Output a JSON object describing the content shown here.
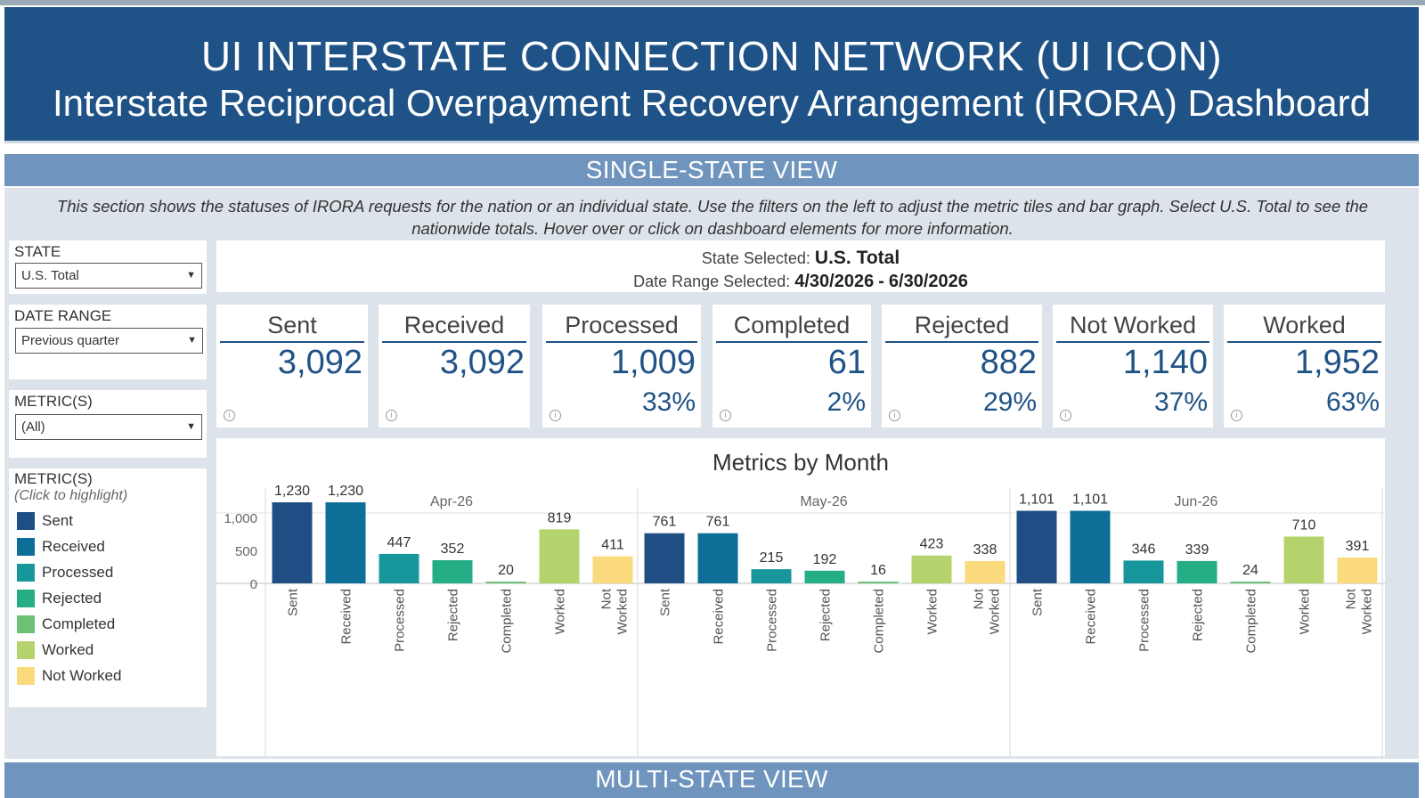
{
  "header": {
    "title": "UI INTERSTATE CONNECTION NETWORK (UI ICON)",
    "subtitle": "Interstate Reciprocal Overpayment Recovery Arrangement (IRORA) Dashboard"
  },
  "single_state_band": "SINGLE-STATE VIEW",
  "multi_state_band": "MULTI-STATE VIEW",
  "description": "This section shows the statuses of IRORA requests for the nation or an individual state. Use the filters on the left to adjust the metric tiles and bar graph. Select U.S. Total to see the nationwide totals. Hover over or click on dashboard elements for more information.",
  "filters": {
    "state_label": "STATE",
    "state_value": "U.S. Total",
    "date_label": "DATE RANGE",
    "date_value": "Previous quarter",
    "metric_label": "METRIC(S)",
    "metric_value": "(All)"
  },
  "legend": {
    "title": "METRIC(S)",
    "subtitle": "(Click to highlight)",
    "items": [
      {
        "label": "Sent",
        "color": "#1f4e85"
      },
      {
        "label": "Received",
        "color": "#0d6f98"
      },
      {
        "label": "Processed",
        "color": "#17979b"
      },
      {
        "label": "Rejected",
        "color": "#25ad86"
      },
      {
        "label": "Completed",
        "color": "#6bc275"
      },
      {
        "label": "Worked",
        "color": "#b5d36c"
      },
      {
        "label": "Not Worked",
        "color": "#fbd97d"
      }
    ]
  },
  "selection": {
    "state_prefix": "State Selected:",
    "state": "U.S. Total",
    "date_prefix": "Date Range Selected:",
    "date_start": "4/30/2026",
    "date_sep": "-",
    "date_end": "6/30/2026"
  },
  "tiles": [
    {
      "name": "Sent",
      "value": "3,092",
      "pct": ""
    },
    {
      "name": "Received",
      "value": "3,092",
      "pct": ""
    },
    {
      "name": "Processed",
      "value": "1,009",
      "pct": "33%"
    },
    {
      "name": "Completed",
      "value": "61",
      "pct": "2%"
    },
    {
      "name": "Rejected",
      "value": "882",
      "pct": "29%"
    },
    {
      "name": "Not Worked",
      "value": "1,140",
      "pct": "37%"
    },
    {
      "name": "Worked",
      "value": "1,952",
      "pct": "63%"
    }
  ],
  "chart_data": {
    "type": "bar",
    "title": "Metrics by Month",
    "ylim": [
      0,
      1300
    ],
    "yticks": [
      0,
      500,
      1000
    ],
    "ytick_labels": [
      "0",
      "500",
      "1,000"
    ],
    "categories": [
      "Sent",
      "Received",
      "Processed",
      "Rejected",
      "Completed",
      "Worked",
      "Not Worked"
    ],
    "colors": [
      "#1f4e85",
      "#0d6f98",
      "#17979b",
      "#25ad86",
      "#6bc275",
      "#b5d36c",
      "#fbd97d"
    ],
    "panels": [
      {
        "month": "Apr-26",
        "values": [
          1230,
          1230,
          447,
          352,
          20,
          819,
          411
        ],
        "labels": [
          "1,230",
          "1,230",
          "447",
          "352",
          "20",
          "819",
          "411"
        ]
      },
      {
        "month": "May-26",
        "values": [
          761,
          761,
          215,
          192,
          16,
          423,
          338
        ],
        "labels": [
          "761",
          "761",
          "215",
          "192",
          "16",
          "423",
          "338"
        ]
      },
      {
        "month": "Jun-26",
        "values": [
          1101,
          1101,
          346,
          339,
          24,
          710,
          391
        ],
        "labels": [
          "1,101",
          "1,101",
          "346",
          "339",
          "24",
          "710",
          "391"
        ]
      }
    ]
  }
}
